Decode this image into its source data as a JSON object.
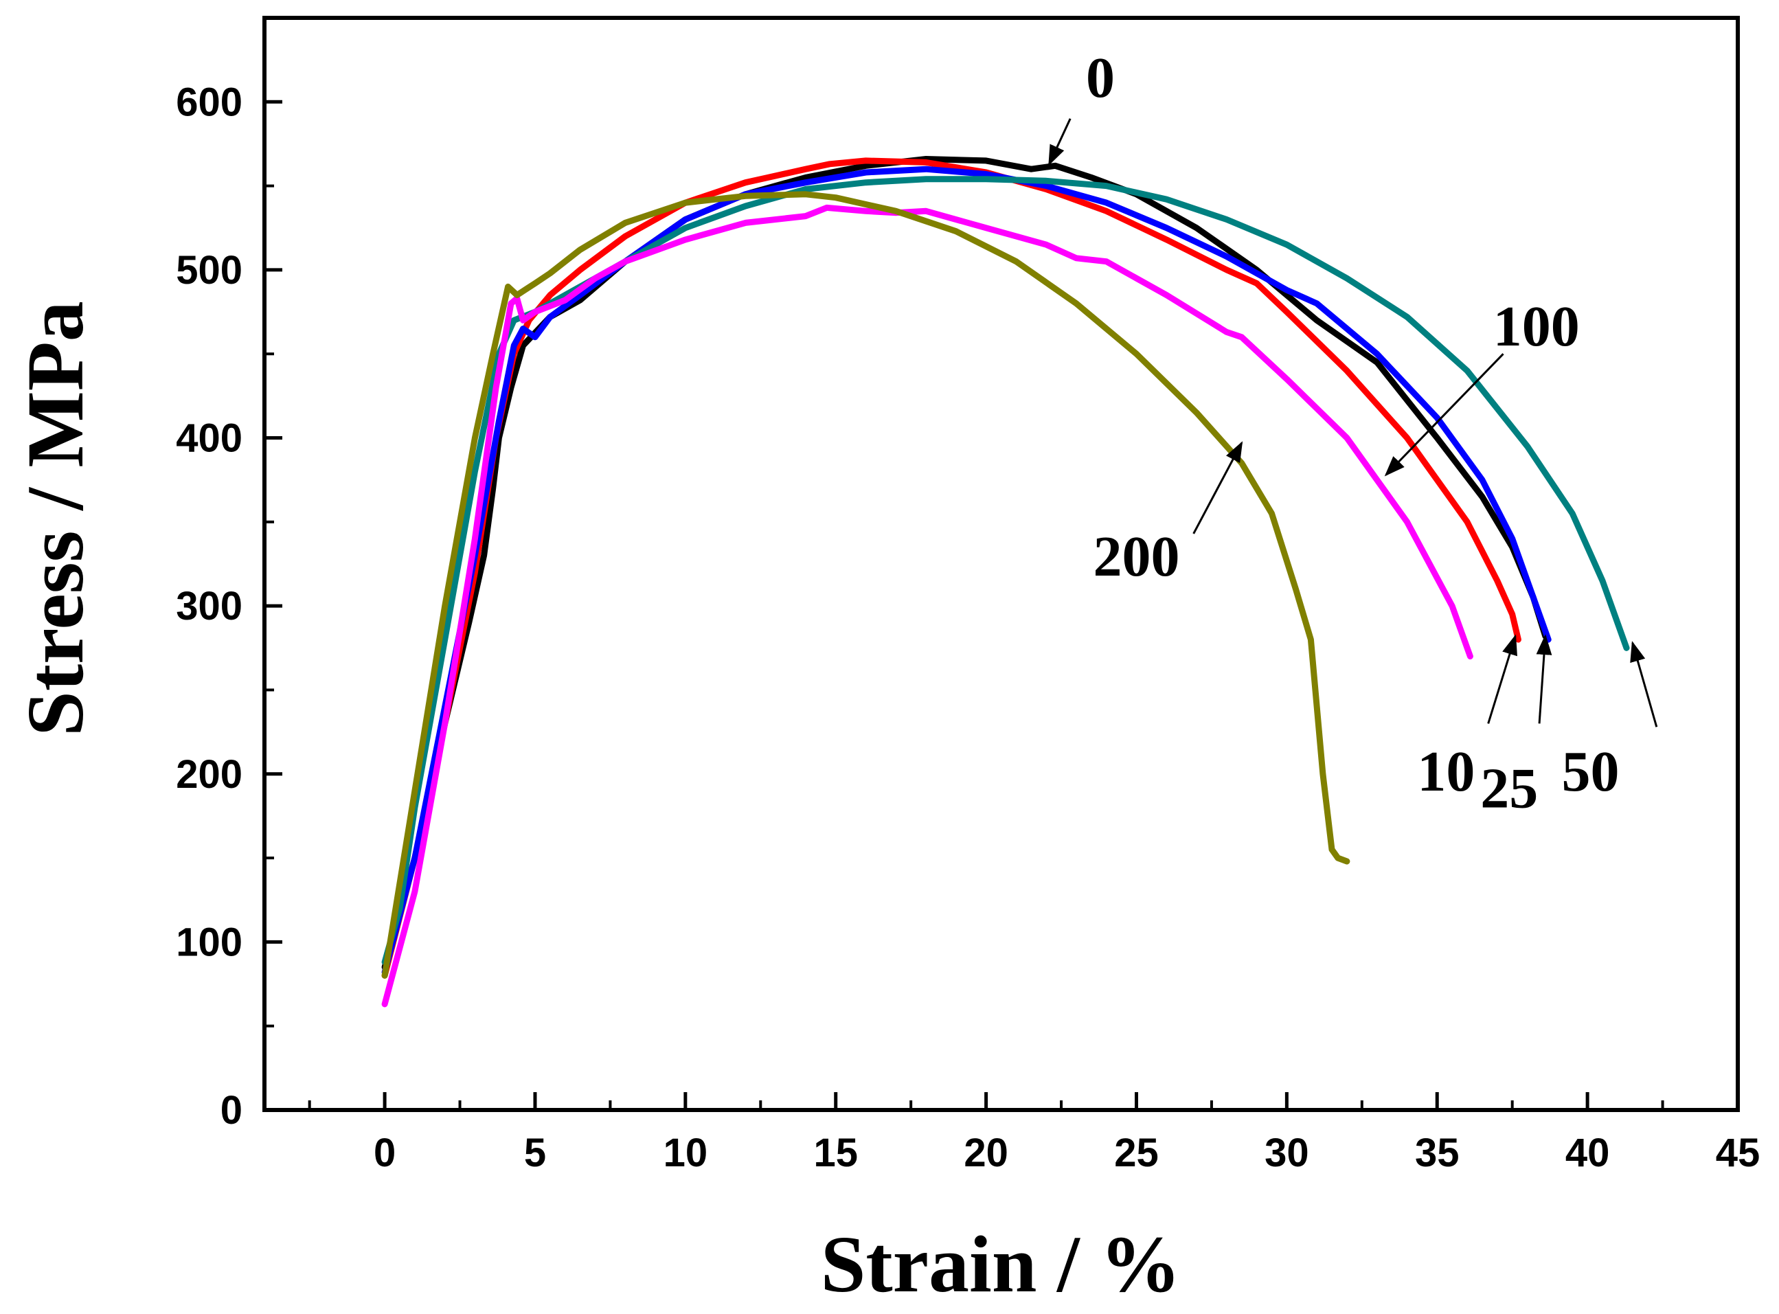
{
  "chart_data": {
    "type": "line",
    "title": "",
    "xlabel": "Strain / %",
    "ylabel": "Stress / MPa",
    "xlim": [
      -4,
      45
    ],
    "ylim": [
      0,
      650
    ],
    "xticks": [
      0,
      5,
      10,
      15,
      20,
      25,
      30,
      35,
      40,
      45
    ],
    "yticks": [
      0,
      100,
      200,
      300,
      400,
      500,
      600
    ],
    "grid": false,
    "legend": "none",
    "series": [
      {
        "name": "0",
        "color": "#000000",
        "x": [
          0,
          1,
          2,
          2.8,
          3.3,
          3.6,
          3.8,
          4.2,
          4.6,
          5.5,
          6.5,
          8,
          10,
          12,
          14,
          16,
          18,
          20,
          21.5,
          22.3,
          23.5,
          25,
          27,
          29,
          31,
          33,
          35,
          36.5,
          37.5,
          38.2,
          38.6
        ],
        "y": [
          85,
          150,
          230,
          290,
          330,
          370,
          400,
          430,
          455,
          472,
          482,
          505,
          530,
          545,
          555,
          562,
          566,
          565,
          560,
          562,
          555,
          545,
          525,
          500,
          470,
          445,
          400,
          365,
          335,
          305,
          282
        ]
      },
      {
        "name": "10",
        "color": "#ff0000",
        "x": [
          0,
          1,
          2,
          3,
          3.7,
          4.3,
          4.8,
          5.5,
          6.5,
          8,
          10,
          12,
          14,
          14.8,
          16,
          18,
          20,
          22,
          24,
          26,
          28,
          29,
          30,
          32,
          34,
          36,
          37,
          37.5,
          37.7
        ],
        "y": [
          80,
          150,
          230,
          320,
          400,
          450,
          470,
          485,
          500,
          520,
          540,
          552,
          560,
          563,
          565,
          564,
          558,
          548,
          535,
          518,
          500,
          492,
          475,
          440,
          400,
          350,
          315,
          295,
          280
        ]
      },
      {
        "name": "25",
        "color": "#0000ff",
        "x": [
          0,
          1,
          2,
          3,
          3.8,
          4.3,
          4.6,
          5,
          5.5,
          6.5,
          8,
          10,
          12,
          14,
          16,
          18,
          20,
          22,
          24,
          26,
          28,
          30,
          31,
          33,
          35,
          36.5,
          37.5,
          38.2,
          38.7
        ],
        "y": [
          82,
          150,
          240,
          330,
          410,
          455,
          465,
          460,
          472,
          485,
          505,
          530,
          545,
          552,
          558,
          560,
          557,
          550,
          540,
          525,
          508,
          488,
          480,
          450,
          412,
          375,
          340,
          305,
          280
        ]
      },
      {
        "name": "50",
        "color": "#008080",
        "x": [
          0,
          0.5,
          1,
          2,
          3,
          3.8,
          4.3,
          5,
          6,
          8,
          10,
          12,
          14,
          16,
          18,
          20,
          22,
          24,
          26,
          28,
          30,
          32,
          34,
          36,
          38,
          39.5,
          40.5,
          41.3
        ],
        "y": [
          88,
          120,
          180,
          280,
          380,
          450,
          470,
          475,
          485,
          505,
          525,
          538,
          548,
          552,
          554,
          554,
          553,
          550,
          542,
          530,
          515,
          495,
          472,
          440,
          395,
          355,
          315,
          275
        ]
      },
      {
        "name": "100",
        "color": "#ff00ff",
        "x": [
          0,
          1,
          2,
          3,
          3.7,
          4.2,
          4.4,
          4.6,
          5,
          6,
          7,
          8,
          10,
          12,
          14,
          14.7,
          16,
          17,
          18,
          20,
          22,
          23,
          24,
          26,
          28,
          28.5,
          30,
          32,
          34,
          35.5,
          36.1
        ],
        "y": [
          63,
          130,
          230,
          340,
          430,
          480,
          483,
          470,
          475,
          482,
          495,
          505,
          518,
          528,
          532,
          537,
          535,
          534,
          535,
          525,
          515,
          507,
          505,
          485,
          463,
          460,
          435,
          400,
          350,
          300,
          270
        ]
      },
      {
        "name": "200",
        "color": "#808000",
        "x": [
          0,
          1,
          2,
          3,
          3.6,
          4.1,
          4.4,
          5,
          5.5,
          6.5,
          8,
          10,
          12,
          14,
          15,
          17,
          19,
          21,
          23,
          25,
          27,
          28.5,
          29.5,
          30.3,
          30.8,
          31.2,
          31.5,
          31.7,
          32
        ],
        "y": [
          80,
          190,
          300,
          400,
          450,
          490,
          485,
          492,
          498,
          512,
          528,
          540,
          544,
          545,
          543,
          535,
          523,
          505,
          480,
          450,
          415,
          385,
          355,
          310,
          280,
          200,
          155,
          150,
          148
        ]
      }
    ],
    "annotations": [
      {
        "text": "0",
        "x": 23.8,
        "y": 603,
        "arrow_from": [
          22.8,
          590
        ],
        "arrow_to": [
          22.1,
          563
        ]
      },
      {
        "text": "100",
        "x": 38.3,
        "y": 455,
        "arrow_from": [
          37.2,
          450
        ],
        "arrow_to": [
          33.3,
          378
        ]
      },
      {
        "text": "200",
        "x": 25.0,
        "y": 318,
        "arrow_from": [
          26.9,
          343
        ],
        "arrow_to": [
          28.5,
          397
        ]
      },
      {
        "text": "10",
        "x": 35.3,
        "y": 190,
        "arrow_from": [
          36.7,
          230
        ],
        "arrow_to": [
          37.6,
          282
        ]
      },
      {
        "text": "25",
        "x": 37.4,
        "y": 180,
        "arrow_from": [
          38.4,
          230
        ],
        "arrow_to": [
          38.6,
          282
        ]
      },
      {
        "text": "50",
        "x": 40.1,
        "y": 190,
        "arrow_from": [
          42.3,
          228
        ],
        "arrow_to": [
          41.5,
          278
        ]
      }
    ]
  }
}
